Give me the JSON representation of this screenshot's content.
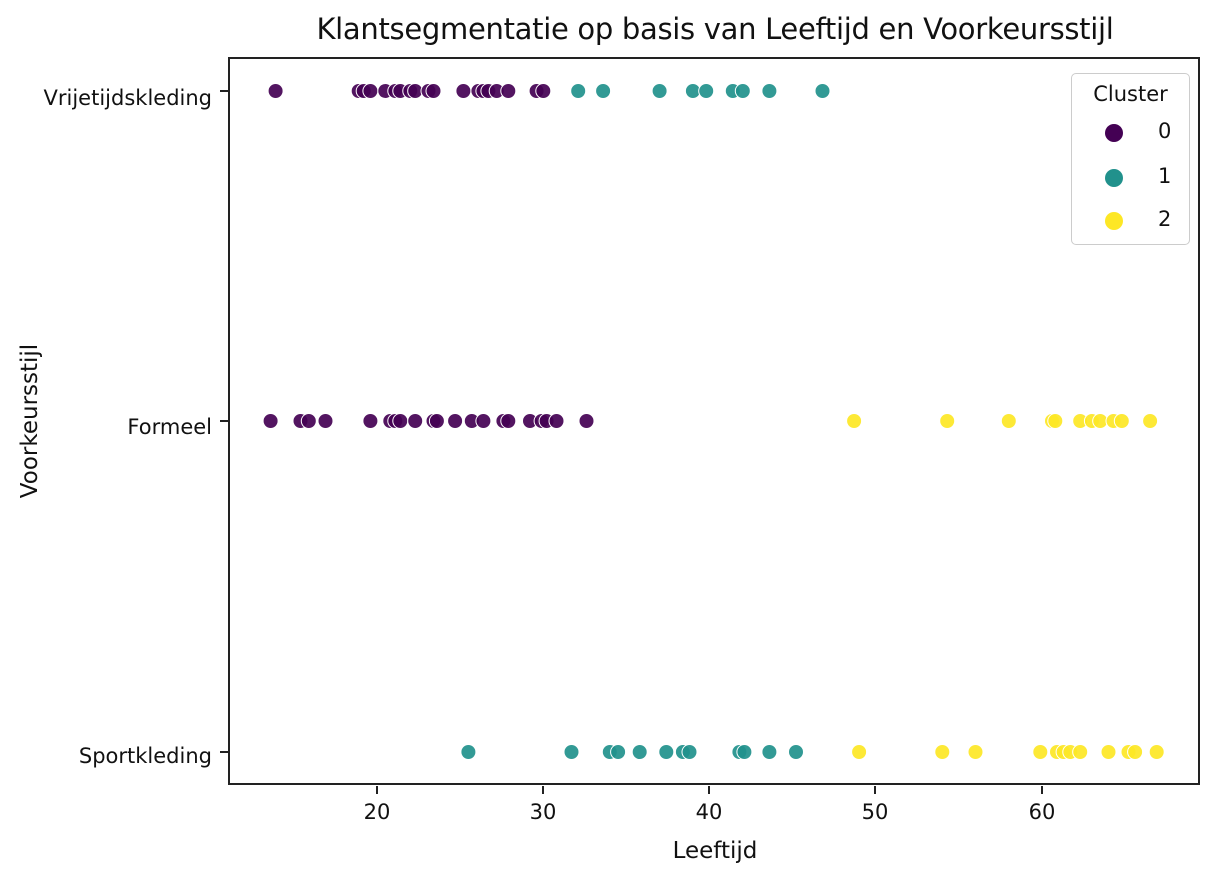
{
  "chart_data": {
    "type": "scatter",
    "title": "Klantsegmentatie op basis van Leeftijd en Voorkeursstijl",
    "xlabel": "Leeftijd",
    "ylabel": "Voorkeursstijl",
    "xlim": [
      11.0,
      69.5
    ],
    "x_ticks": [
      20,
      30,
      40,
      50,
      60
    ],
    "y_categories": [
      "Vrijetijdskleding",
      "Formeel",
      "Sportkleding"
    ],
    "grid": false,
    "legend": {
      "title": "Cluster",
      "position": "upper right",
      "entries": [
        "0",
        "1",
        "2"
      ]
    },
    "colors": {
      "0": "#440154",
      "1": "#21918c",
      "2": "#fde725"
    },
    "series": [
      {
        "name": "0",
        "points": [
          {
            "x": 13.9,
            "y": "Vrijetijdskleding"
          },
          {
            "x": 18.9,
            "y": "Vrijetijdskleding"
          },
          {
            "x": 19.2,
            "y": "Vrijetijdskleding"
          },
          {
            "x": 19.6,
            "y": "Vrijetijdskleding"
          },
          {
            "x": 20.5,
            "y": "Vrijetijdskleding"
          },
          {
            "x": 21.1,
            "y": "Vrijetijdskleding"
          },
          {
            "x": 21.4,
            "y": "Vrijetijdskleding"
          },
          {
            "x": 22.0,
            "y": "Vrijetijdskleding"
          },
          {
            "x": 22.3,
            "y": "Vrijetijdskleding"
          },
          {
            "x": 23.1,
            "y": "Vrijetijdskleding"
          },
          {
            "x": 23.4,
            "y": "Vrijetijdskleding"
          },
          {
            "x": 25.2,
            "y": "Vrijetijdskleding"
          },
          {
            "x": 26.1,
            "y": "Vrijetijdskleding"
          },
          {
            "x": 26.4,
            "y": "Vrijetijdskleding"
          },
          {
            "x": 26.7,
            "y": "Vrijetijdskleding"
          },
          {
            "x": 27.2,
            "y": "Vrijetijdskleding"
          },
          {
            "x": 27.9,
            "y": "Vrijetijdskleding"
          },
          {
            "x": 29.6,
            "y": "Vrijetijdskleding"
          },
          {
            "x": 30.0,
            "y": "Vrijetijdskleding"
          },
          {
            "x": 13.6,
            "y": "Formeel"
          },
          {
            "x": 15.4,
            "y": "Formeel"
          },
          {
            "x": 15.9,
            "y": "Formeel"
          },
          {
            "x": 16.9,
            "y": "Formeel"
          },
          {
            "x": 19.6,
            "y": "Formeel"
          },
          {
            "x": 20.8,
            "y": "Formeel"
          },
          {
            "x": 21.1,
            "y": "Formeel"
          },
          {
            "x": 21.4,
            "y": "Formeel"
          },
          {
            "x": 22.3,
            "y": "Formeel"
          },
          {
            "x": 23.4,
            "y": "Formeel"
          },
          {
            "x": 23.6,
            "y": "Formeel"
          },
          {
            "x": 24.7,
            "y": "Formeel"
          },
          {
            "x": 25.7,
            "y": "Formeel"
          },
          {
            "x": 26.4,
            "y": "Formeel"
          },
          {
            "x": 27.6,
            "y": "Formeel"
          },
          {
            "x": 27.9,
            "y": "Formeel"
          },
          {
            "x": 29.2,
            "y": "Formeel"
          },
          {
            "x": 29.9,
            "y": "Formeel"
          },
          {
            "x": 30.2,
            "y": "Formeel"
          },
          {
            "x": 30.8,
            "y": "Formeel"
          },
          {
            "x": 32.6,
            "y": "Formeel"
          }
        ]
      },
      {
        "name": "1",
        "points": [
          {
            "x": 32.1,
            "y": "Vrijetijdskleding"
          },
          {
            "x": 33.6,
            "y": "Vrijetijdskleding"
          },
          {
            "x": 37.0,
            "y": "Vrijetijdskleding"
          },
          {
            "x": 39.0,
            "y": "Vrijetijdskleding"
          },
          {
            "x": 39.8,
            "y": "Vrijetijdskleding"
          },
          {
            "x": 41.4,
            "y": "Vrijetijdskleding"
          },
          {
            "x": 42.0,
            "y": "Vrijetijdskleding"
          },
          {
            "x": 43.6,
            "y": "Vrijetijdskleding"
          },
          {
            "x": 46.8,
            "y": "Vrijetijdskleding"
          },
          {
            "x": 25.5,
            "y": "Sportkleding"
          },
          {
            "x": 31.7,
            "y": "Sportkleding"
          },
          {
            "x": 34.0,
            "y": "Sportkleding"
          },
          {
            "x": 34.5,
            "y": "Sportkleding"
          },
          {
            "x": 35.8,
            "y": "Sportkleding"
          },
          {
            "x": 37.4,
            "y": "Sportkleding"
          },
          {
            "x": 38.4,
            "y": "Sportkleding"
          },
          {
            "x": 38.8,
            "y": "Sportkleding"
          },
          {
            "x": 41.8,
            "y": "Sportkleding"
          },
          {
            "x": 42.1,
            "y": "Sportkleding"
          },
          {
            "x": 43.6,
            "y": "Sportkleding"
          },
          {
            "x": 45.2,
            "y": "Sportkleding"
          }
        ]
      },
      {
        "name": "2",
        "points": [
          {
            "x": 48.7,
            "y": "Formeel"
          },
          {
            "x": 54.3,
            "y": "Formeel"
          },
          {
            "x": 58.0,
            "y": "Formeel"
          },
          {
            "x": 60.6,
            "y": "Formeel"
          },
          {
            "x": 60.8,
            "y": "Formeel"
          },
          {
            "x": 62.3,
            "y": "Formeel"
          },
          {
            "x": 63.0,
            "y": "Formeel"
          },
          {
            "x": 63.5,
            "y": "Formeel"
          },
          {
            "x": 64.3,
            "y": "Formeel"
          },
          {
            "x": 64.8,
            "y": "Formeel"
          },
          {
            "x": 66.5,
            "y": "Formeel"
          },
          {
            "x": 49.0,
            "y": "Sportkleding"
          },
          {
            "x": 54.0,
            "y": "Sportkleding"
          },
          {
            "x": 56.0,
            "y": "Sportkleding"
          },
          {
            "x": 59.9,
            "y": "Sportkleding"
          },
          {
            "x": 60.9,
            "y": "Sportkleding"
          },
          {
            "x": 61.3,
            "y": "Sportkleding"
          },
          {
            "x": 61.7,
            "y": "Sportkleding"
          },
          {
            "x": 62.3,
            "y": "Sportkleding"
          },
          {
            "x": 64.0,
            "y": "Sportkleding"
          },
          {
            "x": 65.2,
            "y": "Sportkleding"
          },
          {
            "x": 65.6,
            "y": "Sportkleding"
          },
          {
            "x": 66.9,
            "y": "Sportkleding"
          }
        ]
      }
    ]
  }
}
